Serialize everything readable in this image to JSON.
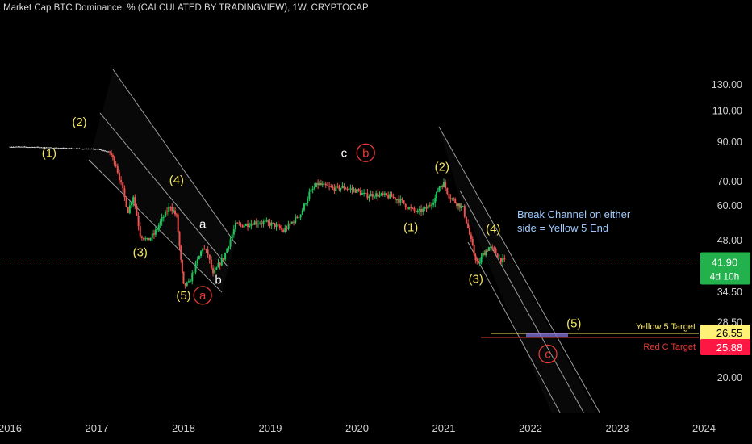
{
  "header": {
    "title": "Market Cap BTC Dominance, % (CALCULATED BY TRADINGVIEW), 1W, CRYPTOCAP"
  },
  "price_axis": {
    "ticks": [
      "130.00",
      "110.00",
      "90.00",
      "70.00",
      "60.00",
      "48.00",
      "34.50",
      "28.50",
      "20.00"
    ],
    "current_price": "41.90",
    "countdown": "4d 10h",
    "yellow_target_label": "Yellow 5 Target",
    "yellow_target_value": "26.55",
    "red_target_label": "Red C Target",
    "red_target_value": "25.88"
  },
  "time_axis": {
    "ticks": [
      "2016",
      "2017",
      "2018",
      "2019",
      "2020",
      "2021",
      "2022",
      "2023",
      "2024"
    ]
  },
  "annotation": {
    "line1": "Break Channel on either",
    "line2": "side  = Yellow 5 End"
  },
  "colors": {
    "bg": "#000000",
    "up": "#26a69a",
    "up_bright": "#22c55e",
    "down": "#ef5350",
    "wave_yellow": "#f5e663",
    "wave_red": "#e53935",
    "annotation_blue": "#9ecbff",
    "current_price_bg": "#22b14c",
    "yellow_target_bg": "#fff176",
    "red_target_bg": "#ff1744",
    "channel": "#d0d0d0"
  },
  "chart_data": {
    "type": "candlestick",
    "title": "Market Cap BTC Dominance, % (CALCULATED BY TRADINGVIEW), 1W, CRYPTOCAP",
    "scale": "log",
    "ylim": [
      19,
      130
    ],
    "xlim": [
      2016.0,
      2024.0
    ],
    "grid": false,
    "series": [
      {
        "name": "BTC Dominance",
        "points": [
          [
            2016.0,
            87.5
          ],
          [
            2016.3,
            87.3
          ],
          [
            2016.5,
            86.9
          ],
          [
            2016.65,
            86.7
          ],
          [
            2016.8,
            86.4
          ],
          [
            2017.0,
            86.2
          ],
          [
            2017.15,
            84.5
          ],
          [
            2017.22,
            78
          ],
          [
            2017.3,
            66
          ],
          [
            2017.36,
            58
          ],
          [
            2017.42,
            64
          ],
          [
            2017.5,
            50
          ],
          [
            2017.58,
            48
          ],
          [
            2017.66,
            50
          ],
          [
            2017.75,
            55
          ],
          [
            2017.85,
            60
          ],
          [
            2017.92,
            56
          ],
          [
            2017.97,
            42
          ],
          [
            2018.0,
            36
          ],
          [
            2018.06,
            36.5
          ],
          [
            2018.14,
            41
          ],
          [
            2018.22,
            46
          ],
          [
            2018.28,
            44
          ],
          [
            2018.34,
            38.5
          ],
          [
            2018.4,
            41
          ],
          [
            2018.46,
            43
          ],
          [
            2018.52,
            47
          ],
          [
            2018.6,
            53
          ],
          [
            2018.7,
            53
          ],
          [
            2018.8,
            54
          ],
          [
            2018.92,
            54
          ],
          [
            2019.05,
            53
          ],
          [
            2019.15,
            51
          ],
          [
            2019.25,
            54
          ],
          [
            2019.35,
            57
          ],
          [
            2019.45,
            65
          ],
          [
            2019.55,
            69
          ],
          [
            2019.62,
            68
          ],
          [
            2019.72,
            67
          ],
          [
            2019.85,
            67.5
          ],
          [
            2020.0,
            66
          ],
          [
            2020.1,
            64
          ],
          [
            2020.2,
            64.5
          ],
          [
            2020.3,
            64
          ],
          [
            2020.4,
            63.5
          ],
          [
            2020.5,
            62
          ],
          [
            2020.6,
            59
          ],
          [
            2020.7,
            57.5
          ],
          [
            2020.8,
            59
          ],
          [
            2020.9,
            63
          ],
          [
            2020.95,
            68
          ],
          [
            2021.0,
            69
          ],
          [
            2021.06,
            64
          ],
          [
            2021.15,
            61
          ],
          [
            2021.22,
            59
          ],
          [
            2021.28,
            52
          ],
          [
            2021.35,
            44
          ],
          [
            2021.4,
            41
          ],
          [
            2021.45,
            44
          ],
          [
            2021.52,
            46
          ],
          [
            2021.58,
            45
          ],
          [
            2021.64,
            43
          ],
          [
            2021.7,
            41.9
          ]
        ]
      }
    ],
    "levels": [
      {
        "name": "Yellow 5 Target",
        "value": 26.55
      },
      {
        "name": "Red C Target",
        "value": 25.88
      },
      {
        "name": "Current",
        "value": 41.9
      }
    ],
    "wave_labels": [
      {
        "text": "(1)",
        "x": 2016.45,
        "y": 82,
        "color": "yellow"
      },
      {
        "text": "(2)",
        "x": 2016.8,
        "y": 100,
        "color": "yellow"
      },
      {
        "text": "(3)",
        "x": 2017.5,
        "y": 43.5,
        "color": "yellow"
      },
      {
        "text": "(4)",
        "x": 2017.92,
        "y": 69,
        "color": "yellow"
      },
      {
        "text": "a",
        "x": 2018.22,
        "y": 52,
        "color": "white"
      },
      {
        "text": "b",
        "x": 2018.4,
        "y": 36.5,
        "color": "white"
      },
      {
        "text": "(5)",
        "x": 2018.0,
        "y": 33,
        "color": "yellow"
      },
      {
        "text": "a",
        "x": 2018.22,
        "y": 33,
        "color": "red-circle"
      },
      {
        "text": "c",
        "x": 2019.85,
        "y": 82,
        "color": "white"
      },
      {
        "text": "b",
        "x": 2020.1,
        "y": 82,
        "color": "red-circle"
      },
      {
        "text": "(2)",
        "x": 2020.98,
        "y": 75,
        "color": "yellow"
      },
      {
        "text": "(1)",
        "x": 2020.62,
        "y": 51,
        "color": "yellow"
      },
      {
        "text": "(4)",
        "x": 2021.57,
        "y": 50.5,
        "color": "yellow"
      },
      {
        "text": "(3)",
        "x": 2021.37,
        "y": 36.7,
        "color": "yellow"
      },
      {
        "text": "(5)",
        "x": 2022.5,
        "y": 27.6,
        "color": "yellow"
      },
      {
        "text": "c",
        "x": 2022.2,
        "y": 22.7,
        "color": "red-circle"
      }
    ]
  }
}
